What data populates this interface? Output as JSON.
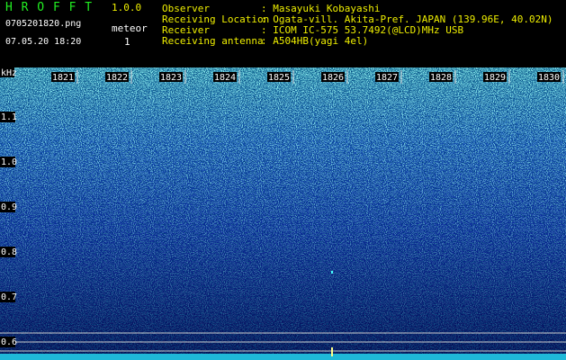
{
  "header": {
    "program": "H R O F F T",
    "version": "1.0.0",
    "filename": "0705201820.png",
    "datetime": "07.05.20 18:20",
    "meteor_label": "meteor",
    "meteor_count": 1
  },
  "station": [
    {
      "label": "Observer",
      "value": ": Masayuki Kobayashi"
    },
    {
      "label": "Receiving Location",
      "value": ": Ogata-vill. Akita-Pref. JAPAN (139.96E, 40.02N)"
    },
    {
      "label": "Receiver",
      "value": ": ICOM IC-575 53.7492(@LCD)MHz USB"
    },
    {
      "label": "Receiving antenna",
      "value": ": A504HB(yagi 4el)"
    }
  ],
  "spectrogram": {
    "y_unit": "kHz",
    "y_labels": [
      "1.1",
      "1.0",
      "0.9",
      "0.8",
      "0.7",
      "0.6"
    ],
    "x_labels": [
      "1821",
      "1822",
      "1823",
      "1824",
      "1825",
      "1826",
      "1827",
      "1828",
      "1829",
      "1830"
    ]
  }
}
